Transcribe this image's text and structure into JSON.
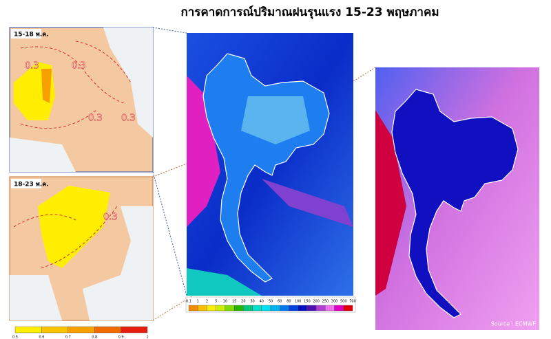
{
  "title": "การคาดการณ์ปริมาณฝนรุนแรง 15-23 พฤษภาคม",
  "panels": [
    {
      "label": "15-18 พ.ค.",
      "contour_labels": [
        "0.3",
        "0.3",
        "0.3",
        "0.3"
      ]
    },
    {
      "label": "18-23 พ.ค.",
      "contour_labels": [
        "0.3"
      ]
    }
  ],
  "probability_legend": {
    "labels": [
      "0.5",
      "0.6",
      "0.7",
      "0.8",
      "0.9",
      "1"
    ],
    "colors": [
      "#ffee00",
      "#fbc400",
      "#f7a000",
      "#f06a00",
      "#e61e10"
    ]
  },
  "rainfall_legend": {
    "labels": [
      "0.1",
      "1",
      "2",
      "5",
      "10",
      "15",
      "20",
      "30",
      "40",
      "50",
      "60",
      "80",
      "100",
      "150",
      "200",
      "250",
      "300",
      "500",
      "700"
    ],
    "colors": [
      "#f08c00",
      "#f8c000",
      "#f8f000",
      "#c8f000",
      "#80dc00",
      "#28b400",
      "#00c878",
      "#00e0c8",
      "#00e0f0",
      "#00b4f0",
      "#0078f0",
      "#0040dc",
      "#0010c0",
      "#5010b0",
      "#b040d0",
      "#f070f0",
      "#e000c0",
      "#e00000"
    ]
  },
  "source": "Source : ECMWF"
}
